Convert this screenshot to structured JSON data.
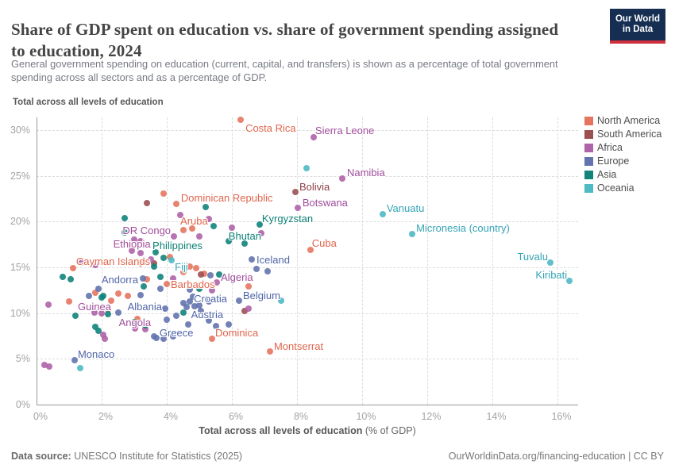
{
  "header": {
    "title": "Share of GDP spent on education vs. share of government spending assigned to education, 2024",
    "subtitle": "General government spending on education (current, capital, and transfers) is shown as a percentage of total government spending across all sectors and as a percentage of GDP.",
    "logo": {
      "line1": "Our World",
      "line2": "in Data"
    }
  },
  "footer": {
    "source_label": "Data source:",
    "source_text": " UNESCO Institute for Statistics (2025)",
    "right_text": "OurWorldinData.org/financing-education | CC BY"
  },
  "chart_data": {
    "type": "scatter",
    "title": "Share of GDP spent on education vs. share of government spending assigned to education, 2024",
    "ylabel": "Total across all levels of education",
    "xlabel_bold": "Total across all levels of education",
    "xlabel_unit": " (% of GDP)",
    "xlim": [
      0,
      16.6
    ],
    "ylim": [
      0,
      31.5
    ],
    "grid": true,
    "legend_position": "right",
    "x_ticks": [
      {
        "v": 0,
        "t": "0%"
      },
      {
        "v": 2,
        "t": "2%"
      },
      {
        "v": 4,
        "t": "4%"
      },
      {
        "v": 6,
        "t": "6%"
      },
      {
        "v": 8,
        "t": "8%"
      },
      {
        "v": 10,
        "t": "10%"
      },
      {
        "v": 12,
        "t": "12%"
      },
      {
        "v": 14,
        "t": "14%"
      },
      {
        "v": 16,
        "t": "16%"
      }
    ],
    "y_ticks": [
      {
        "v": 0,
        "t": "0%"
      },
      {
        "v": 5,
        "t": "5%"
      },
      {
        "v": 10,
        "t": "10%"
      },
      {
        "v": 15,
        "t": "15%"
      },
      {
        "v": 20,
        "t": "20%"
      },
      {
        "v": 25,
        "t": "25%"
      },
      {
        "v": 30,
        "t": "30%"
      }
    ],
    "series": [
      {
        "name": "North America",
        "dot_color": "#e6755f",
        "label_color": "#e0654d",
        "points": [
          {
            "name": "Costa Rica",
            "x": 6.27,
            "y": 31.1,
            "anchor": "start",
            "dx": 6,
            "dy": 10
          },
          {
            "name": "Dominican Republic",
            "x": 4.29,
            "y": 21.9,
            "anchor": "start",
            "dx": 6,
            "dy": -8
          },
          {
            "name": "Aruba",
            "x": 4.79,
            "y": 19.25,
            "anchor": "middle",
            "dx": 2,
            "dy": -10
          },
          {
            "name": "Cuba",
            "x": 8.41,
            "y": 16.9,
            "anchor": "start",
            "dx": 2,
            "dy": -9
          },
          {
            "name": "Cayman Islands",
            "x": 1.12,
            "y": 14.9,
            "anchor": "start",
            "dx": 4,
            "dy": -9
          },
          {
            "name": "Barbados",
            "x": 4.0,
            "y": 13.2,
            "anchor": "start",
            "dx": 5,
            "dy": 0
          },
          {
            "name": "Dominica",
            "x": 5.39,
            "y": 7.2,
            "anchor": "start",
            "dx": 4,
            "dy": -8
          },
          {
            "name": "Montserrat",
            "x": 7.17,
            "y": 5.8,
            "anchor": "start",
            "dx": 5,
            "dy": -7
          },
          {
            "x": 3.9,
            "y": 23.1
          },
          {
            "x": 4.5,
            "y": 19.1
          },
          {
            "x": 4.1,
            "y": 16.1
          },
          {
            "x": 3.2,
            "y": 15.4
          },
          {
            "x": 4.7,
            "y": 15.1
          },
          {
            "x": 4.9,
            "y": 14.9
          },
          {
            "x": 4.5,
            "y": 14.5
          },
          {
            "x": 5.15,
            "y": 14.35
          },
          {
            "x": 3.4,
            "y": 13.7
          },
          {
            "x": 2.5,
            "y": 12.1
          },
          {
            "x": 2.8,
            "y": 11.9
          },
          {
            "x": 1.8,
            "y": 12.2
          },
          {
            "x": 2.3,
            "y": 11.4
          },
          {
            "x": 1.0,
            "y": 11.3
          },
          {
            "x": 2.2,
            "y": 10.4
          },
          {
            "x": 3.1,
            "y": 9.4
          },
          {
            "x": 6.5,
            "y": 12.9
          }
        ]
      },
      {
        "name": "South America",
        "dot_color": "#9c5052",
        "label_color": "#8f3e44",
        "points": [
          {
            "name": "Bolivia",
            "x": 7.95,
            "y": 23.2,
            "anchor": "start",
            "dx": 5,
            "dy": -7
          },
          {
            "x": 3.4,
            "y": 22.0
          },
          {
            "x": 3.6,
            "y": 15.4
          },
          {
            "x": 5.05,
            "y": 14.25
          },
          {
            "x": 6.4,
            "y": 10.2
          }
        ]
      },
      {
        "name": "Africa",
        "dot_color": "#af63a9",
        "label_color": "#a04d9b",
        "points": [
          {
            "name": "Sierra Leone",
            "x": 8.51,
            "y": 29.2,
            "anchor": "start",
            "dx": 2,
            "dy": -9
          },
          {
            "name": "Namibia",
            "x": 9.39,
            "y": 24.7,
            "anchor": "start",
            "dx": 6,
            "dy": -8
          },
          {
            "name": "Botswana",
            "x": 8.02,
            "y": 21.5,
            "anchor": "start",
            "dx": 6,
            "dy": -7
          },
          {
            "name": "DR Congo",
            "x": 4.22,
            "y": 18.4,
            "anchor": "end",
            "dx": -4,
            "dy": -8
          },
          {
            "name": "Ethiopia",
            "x": 2.93,
            "y": 16.8,
            "anchor": "middle",
            "dx": 0,
            "dy": -9
          },
          {
            "name": "Algeria",
            "x": 5.54,
            "y": 13.35,
            "anchor": "start",
            "dx": 5,
            "dy": -7
          },
          {
            "name": "Guinea",
            "x": 1.78,
            "y": 10.05,
            "anchor": "middle",
            "dx": 0,
            "dy": -8
          },
          {
            "name": "Angola",
            "x": 3.02,
            "y": 8.35,
            "anchor": "middle",
            "dx": 0,
            "dy": -8
          },
          {
            "x": 4.42,
            "y": 20.7
          },
          {
            "x": 5.3,
            "y": 20.3
          },
          {
            "x": 3.0,
            "y": 18.05
          },
          {
            "x": 3.2,
            "y": 17.9
          },
          {
            "x": 5.0,
            "y": 18.4
          },
          {
            "x": 6.9,
            "y": 18.7
          },
          {
            "x": 6.0,
            "y": 19.3
          },
          {
            "x": 3.5,
            "y": 15.9
          },
          {
            "x": 3.2,
            "y": 16.6
          },
          {
            "x": 1.4,
            "y": 15.5
          },
          {
            "x": 1.8,
            "y": 15.3
          },
          {
            "x": 4.2,
            "y": 13.8
          },
          {
            "x": 5.4,
            "y": 12.5
          },
          {
            "x": 6.5,
            "y": 10.5
          },
          {
            "x": 0.37,
            "y": 10.9
          },
          {
            "x": 2.0,
            "y": 10.0
          },
          {
            "x": 2.05,
            "y": 7.6
          },
          {
            "x": 2.1,
            "y": 7.2
          },
          {
            "x": 3.35,
            "y": 8.2
          },
          {
            "x": 0.25,
            "y": 4.3
          },
          {
            "x": 0.4,
            "y": 4.2
          }
        ]
      },
      {
        "name": "Europe",
        "dot_color": "#6373ae",
        "label_color": "#5065a8",
        "points": [
          {
            "name": "Iceland",
            "x": 6.61,
            "y": 15.9,
            "anchor": "start",
            "dx": 6,
            "dy": 0
          },
          {
            "name": "Andorra",
            "x": 3.27,
            "y": 13.8,
            "anchor": "end",
            "dx": -6,
            "dy": 1
          },
          {
            "name": "Croatia",
            "x": 4.71,
            "y": 11.3,
            "anchor": "start",
            "dx": 5,
            "dy": -4
          },
          {
            "name": "Albania",
            "x": 3.95,
            "y": 10.5,
            "anchor": "end",
            "dx": -4,
            "dy": -3
          },
          {
            "name": "Austria",
            "x": 5.29,
            "y": 9.2,
            "anchor": "middle",
            "dx": -2,
            "dy": -8
          },
          {
            "name": "Greece",
            "x": 3.68,
            "y": 7.3,
            "anchor": "start",
            "dx": 4,
            "dy": -7
          },
          {
            "name": "Belgium",
            "x": 6.22,
            "y": 11.4,
            "anchor": "start",
            "dx": 5,
            "dy": -7
          },
          {
            "name": "Monaco",
            "x": 1.17,
            "y": 4.85,
            "anchor": "start",
            "dx": 4,
            "dy": -8
          },
          {
            "x": 6.75,
            "y": 14.8
          },
          {
            "x": 7.1,
            "y": 14.6
          },
          {
            "x": 1.9,
            "y": 12.7
          },
          {
            "x": 1.6,
            "y": 11.9
          },
          {
            "x": 3.2,
            "y": 12.0
          },
          {
            "x": 3.8,
            "y": 12.7
          },
          {
            "x": 4.7,
            "y": 12.6
          },
          {
            "x": 5.35,
            "y": 14.1
          },
          {
            "x": 2.5,
            "y": 10.1
          },
          {
            "x": 4.5,
            "y": 11.1
          },
          {
            "x": 4.6,
            "y": 10.7
          },
          {
            "x": 4.85,
            "y": 10.75
          },
          {
            "x": 5.0,
            "y": 10.85
          },
          {
            "x": 5.05,
            "y": 10.2
          },
          {
            "x": 5.3,
            "y": 11.3
          },
          {
            "x": 4.8,
            "y": 11.8
          },
          {
            "x": 5.5,
            "y": 8.6
          },
          {
            "x": 5.9,
            "y": 8.8
          },
          {
            "x": 4.0,
            "y": 9.3
          },
          {
            "x": 4.3,
            "y": 9.7
          },
          {
            "x": 4.65,
            "y": 8.8
          },
          {
            "x": 3.6,
            "y": 7.5
          },
          {
            "x": 3.9,
            "y": 7.2
          },
          {
            "x": 4.2,
            "y": 7.5
          }
        ]
      },
      {
        "name": "Asia",
        "dot_color": "#12847c",
        "label_color": "#0b7f74",
        "points": [
          {
            "name": "Kyrgyzstan",
            "x": 6.85,
            "y": 19.7,
            "anchor": "start",
            "dx": 3,
            "dy": -8
          },
          {
            "name": "Bhutan",
            "x": 6.4,
            "y": 17.6,
            "anchor": "middle",
            "dx": 0,
            "dy": -10
          },
          {
            "name": "Philippines",
            "x": 3.66,
            "y": 16.65,
            "anchor": "start",
            "dx": -4,
            "dy": -9
          },
          {
            "x": 5.2,
            "y": 21.6
          },
          {
            "x": 2.7,
            "y": 20.4
          },
          {
            "x": 2.7,
            "y": 18.8
          },
          {
            "x": 5.45,
            "y": 19.5
          },
          {
            "x": 5.9,
            "y": 17.9
          },
          {
            "x": 3.9,
            "y": 16.0
          },
          {
            "x": 3.6,
            "y": 15.1
          },
          {
            "x": 0.8,
            "y": 14.0
          },
          {
            "x": 1.05,
            "y": 13.7
          },
          {
            "x": 3.3,
            "y": 12.9
          },
          {
            "x": 3.8,
            "y": 14.0
          },
          {
            "x": 2.0,
            "y": 11.7
          },
          {
            "x": 2.05,
            "y": 11.9
          },
          {
            "x": 5.0,
            "y": 12.7
          },
          {
            "x": 5.6,
            "y": 14.2
          },
          {
            "x": 2.2,
            "y": 9.9
          },
          {
            "x": 1.2,
            "y": 9.7
          },
          {
            "x": 1.8,
            "y": 8.5
          },
          {
            "x": 1.9,
            "y": 8.1
          },
          {
            "x": 4.5,
            "y": 10.1
          },
          {
            "x": 3.35,
            "y": 8.7
          },
          {
            "x": 3.0,
            "y": 9.0
          }
        ]
      },
      {
        "name": "Oceania",
        "dot_color": "#4fb9c4",
        "label_color": "#35a4b6",
        "points": [
          {
            "name": "Vanuatu",
            "x": 10.63,
            "y": 20.8,
            "anchor": "start",
            "dx": 5,
            "dy": -8
          },
          {
            "name": "Micronesia (country)",
            "x": 11.54,
            "y": 18.65,
            "anchor": "start",
            "dx": 5,
            "dy": -8
          },
          {
            "name": "Fiji",
            "x": 4.15,
            "y": 15.75,
            "anchor": "start",
            "dx": 4,
            "dy": 8
          },
          {
            "name": "Tuvalu",
            "x": 15.78,
            "y": 15.5,
            "anchor": "end",
            "dx": -3,
            "dy": -8
          },
          {
            "name": "Kiribati",
            "x": 16.37,
            "y": 13.5,
            "anchor": "end",
            "dx": -3,
            "dy": -8
          },
          {
            "x": 8.3,
            "y": 25.8
          },
          {
            "x": 7.5,
            "y": 11.4
          },
          {
            "x": 1.35,
            "y": 4.0
          }
        ]
      }
    ]
  }
}
